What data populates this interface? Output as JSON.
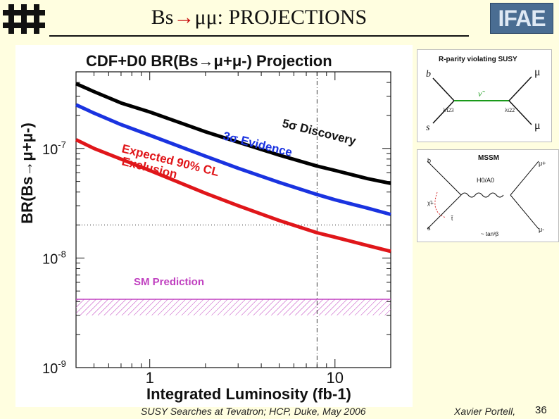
{
  "slide": {
    "title_prefix": "Bs",
    "title_arrow": "→",
    "title_mu": "μμ",
    "title_suffix": ": PROJECTIONS",
    "logo_right_text": "IFAE",
    "footer_left": "SUSY Searches at Tevatron; HCP, Duke, May 2006",
    "footer_author": "Xavier Portell,",
    "page_number": "36"
  },
  "chart_data": {
    "type": "line",
    "title": "CDF+D0 BR(Bs→μ+μ-) Projection",
    "xlabel": "Integrated Luminosity (fb-1)",
    "ylabel": "BR(Bs→μ+μ-)",
    "x_scale": "log",
    "y_scale": "log",
    "xlim": [
      0.4,
      20
    ],
    "ylim": [
      1e-09,
      5e-07
    ],
    "x_tick_labels": [
      {
        "value": 1,
        "label": "1"
      },
      {
        "value": 10,
        "label": "10"
      }
    ],
    "y_tick_labels": [
      {
        "value": 1e-07,
        "base": "10",
        "exp": "-7"
      },
      {
        "value": 1e-08,
        "base": "10",
        "exp": "-8"
      },
      {
        "value": 1e-09,
        "base": "10",
        "exp": "-9"
      }
    ],
    "series": [
      {
        "name": "5σ Discovery",
        "color": "#000000",
        "x": [
          0.4,
          0.5,
          0.7,
          1,
          2,
          3,
          5,
          8,
          10,
          15,
          20
        ],
        "y": [
          3.9e-07,
          3.3e-07,
          2.6e-07,
          2.15e-07,
          1.42e-07,
          1.14e-07,
          8.7e-08,
          6.9e-08,
          6.3e-08,
          5.3e-08,
          4.8e-08
        ]
      },
      {
        "name": "3σ Evidence",
        "color": "#1a33e0",
        "x": [
          0.4,
          0.5,
          0.7,
          1,
          2,
          3,
          5,
          8,
          10,
          15,
          20
        ],
        "y": [
          2.5e-07,
          2.1e-07,
          1.65e-07,
          1.32e-07,
          8.5e-08,
          6.6e-08,
          4.9e-08,
          3.8e-08,
          3.4e-08,
          2.85e-08,
          2.5e-08
        ]
      },
      {
        "name": "Expected 90% CL Exclusion",
        "color": "#e0161a",
        "x": [
          0.4,
          0.5,
          0.7,
          1,
          2,
          3,
          5,
          8,
          10,
          15,
          20
        ],
        "y": [
          1.2e-07,
          1e-07,
          8e-08,
          6.3e-08,
          3.9e-08,
          3e-08,
          2.2e-08,
          1.7e-08,
          1.55e-08,
          1.3e-08,
          1.15e-08
        ]
      }
    ],
    "series_labels": [
      "5σ Discovery",
      "3σ Evidence",
      "Expected 90% CL",
      "Exclusion"
    ],
    "sm_band": {
      "label": "SM Prediction",
      "ymin": 3e-09,
      "ymax": 4.2e-09,
      "color": "#c040c0"
    },
    "horizontal_ref_line": {
      "y": 2e-08,
      "style": "dotted"
    },
    "vertical_ref_line": {
      "x": 8,
      "style": "dash-dot"
    }
  },
  "diagrams": {
    "rpv": {
      "title": "R-parity violating SUSY",
      "labels": [
        "b",
        "s",
        "μ",
        "μ",
        "ν̃",
        "λ'i23",
        "λi22"
      ]
    },
    "mssm": {
      "title": "MSSM",
      "labels": [
        "b",
        "s",
        "μ+",
        "μ-",
        "χ̃+",
        "t̃",
        "H0/A0",
        "~ tan³β"
      ]
    }
  }
}
